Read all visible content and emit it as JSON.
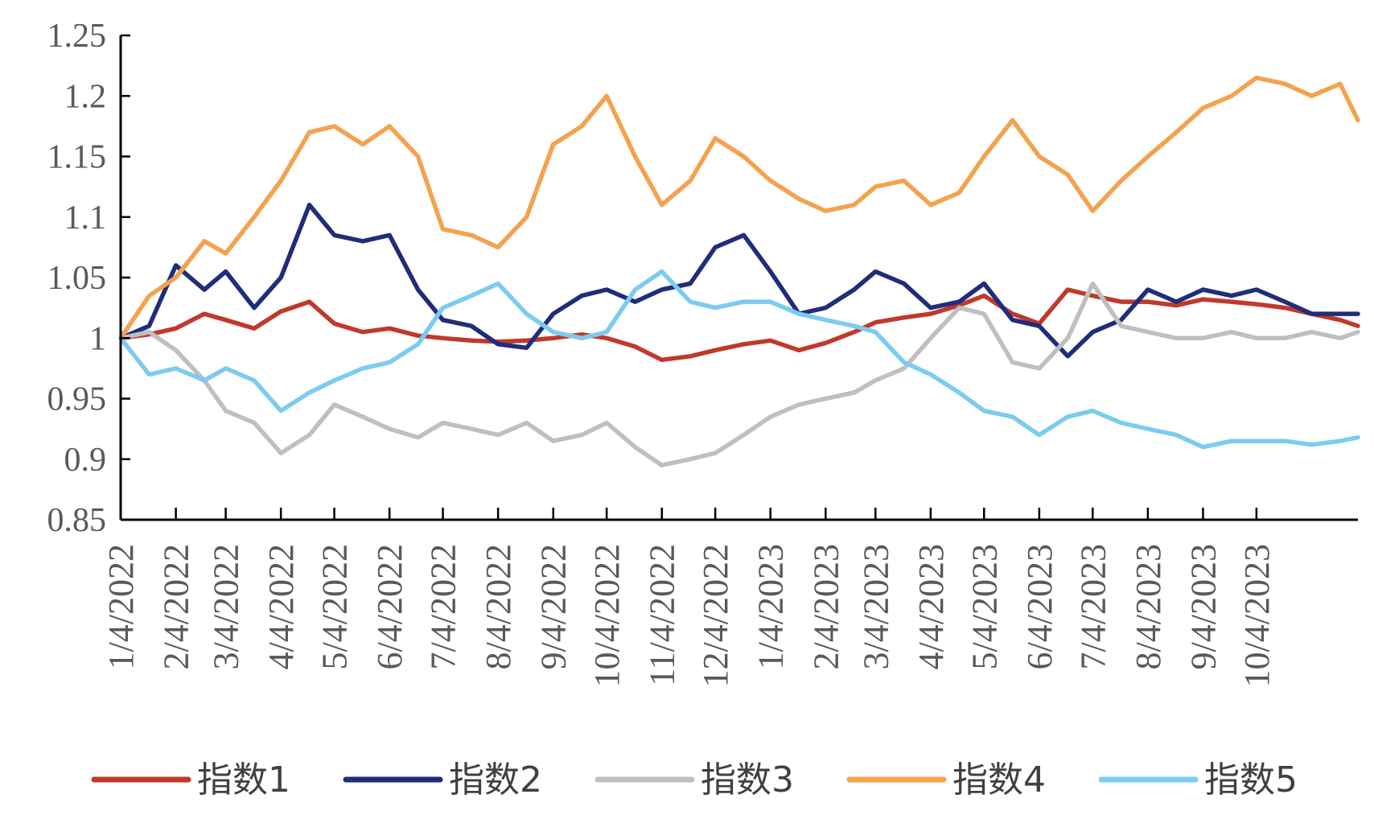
{
  "chart_data": {
    "type": "line",
    "title": "",
    "xlabel": "",
    "ylabel": "",
    "ylim": [
      0.85,
      1.25
    ],
    "yticks": [
      "0.85",
      "0.9",
      "0.95",
      "1",
      "1.05",
      "1.1",
      "1.15",
      "1.2",
      "1.25"
    ],
    "x_tick_labels": [
      "1/4/2022",
      "2/4/2022",
      "3/4/2022",
      "4/4/2022",
      "5/4/2022",
      "6/4/2022",
      "7/4/2022",
      "8/4/2022",
      "9/4/2022",
      "10/4/2022",
      "11/4/2022",
      "12/4/2022",
      "1/4/2023",
      "2/4/2023",
      "3/4/2023",
      "4/4/2023",
      "5/4/2023",
      "6/4/2023",
      "7/4/2023",
      "8/4/2023",
      "9/4/2023",
      "10/4/2023"
    ],
    "x_range": [
      "1/4/2022",
      "11/30/2023"
    ],
    "legend_position": "bottom",
    "grid": false,
    "series": [
      {
        "name": "指数1",
        "color": "#C0392B",
        "x": [
          "1/4/2022",
          "1/20/2022",
          "2/4/2022",
          "2/20/2022",
          "3/4/2022",
          "3/20/2022",
          "4/4/2022",
          "4/20/2022",
          "5/4/2022",
          "5/20/2022",
          "6/4/2022",
          "6/20/2022",
          "7/4/2022",
          "7/20/2022",
          "8/4/2022",
          "8/20/2022",
          "9/4/2022",
          "9/20/2022",
          "10/4/2022",
          "10/20/2022",
          "11/4/2022",
          "11/20/2022",
          "12/4/2022",
          "12/20/2022",
          "1/4/2023",
          "1/20/2023",
          "2/4/2023",
          "2/20/2023",
          "3/4/2023",
          "3/20/2023",
          "4/4/2023",
          "4/20/2023",
          "5/4/2023",
          "5/20/2023",
          "6/4/2023",
          "6/20/2023",
          "7/4/2023",
          "7/20/2023",
          "8/4/2023",
          "8/20/2023",
          "9/4/2023",
          "9/20/2023",
          "10/4/2023",
          "10/20/2023",
          "11/4/2023",
          "11/20/2023",
          "11/30/2023"
        ],
        "values": [
          1.0,
          1.003,
          1.008,
          1.02,
          1.015,
          1.008,
          1.022,
          1.03,
          1.012,
          1.005,
          1.008,
          1.002,
          1.0,
          0.998,
          0.997,
          0.998,
          1.0,
          1.003,
          1.0,
          0.993,
          0.982,
          0.985,
          0.99,
          0.995,
          0.998,
          0.99,
          0.996,
          1.005,
          1.013,
          1.017,
          1.02,
          1.027,
          1.035,
          1.02,
          1.012,
          1.04,
          1.035,
          1.03,
          1.03,
          1.027,
          1.032,
          1.03,
          1.028,
          1.025,
          1.02,
          1.015,
          1.01
        ]
      },
      {
        "name": "指数2",
        "color": "#1F2D7A",
        "x": [
          "1/4/2022",
          "1/20/2022",
          "2/4/2022",
          "2/20/2022",
          "3/4/2022",
          "3/20/2022",
          "4/4/2022",
          "4/20/2022",
          "5/4/2022",
          "5/20/2022",
          "6/4/2022",
          "6/20/2022",
          "7/4/2022",
          "7/20/2022",
          "8/4/2022",
          "8/20/2022",
          "9/4/2022",
          "9/20/2022",
          "10/4/2022",
          "10/20/2022",
          "11/4/2022",
          "11/20/2022",
          "12/4/2022",
          "12/20/2022",
          "1/4/2023",
          "1/20/2023",
          "2/4/2023",
          "2/20/2023",
          "3/4/2023",
          "3/20/2023",
          "4/4/2023",
          "4/20/2023",
          "5/4/2023",
          "5/20/2023",
          "6/4/2023",
          "6/20/2023",
          "7/4/2023",
          "7/20/2023",
          "8/4/2023",
          "8/20/2023",
          "9/4/2023",
          "9/20/2023",
          "10/4/2023",
          "10/20/2023",
          "11/4/2023",
          "11/20/2023",
          "11/30/2023"
        ],
        "values": [
          1.0,
          1.01,
          1.06,
          1.04,
          1.055,
          1.025,
          1.05,
          1.11,
          1.085,
          1.08,
          1.085,
          1.04,
          1.015,
          1.01,
          0.995,
          0.992,
          1.02,
          1.035,
          1.04,
          1.03,
          1.04,
          1.045,
          1.075,
          1.085,
          1.055,
          1.02,
          1.025,
          1.04,
          1.055,
          1.045,
          1.025,
          1.03,
          1.045,
          1.015,
          1.01,
          0.985,
          1.005,
          1.015,
          1.04,
          1.03,
          1.04,
          1.035,
          1.04,
          1.03,
          1.02,
          1.02,
          1.02
        ]
      },
      {
        "name": "指数3",
        "color": "#BFBFBF",
        "x": [
          "1/4/2022",
          "1/20/2022",
          "2/4/2022",
          "2/20/2022",
          "3/4/2022",
          "3/20/2022",
          "4/4/2022",
          "4/20/2022",
          "5/4/2022",
          "5/20/2022",
          "6/4/2022",
          "6/20/2022",
          "7/4/2022",
          "7/20/2022",
          "8/4/2022",
          "8/20/2022",
          "9/4/2022",
          "9/20/2022",
          "10/4/2022",
          "10/20/2022",
          "11/4/2022",
          "11/20/2022",
          "12/4/2022",
          "12/20/2022",
          "1/4/2023",
          "1/20/2023",
          "2/4/2023",
          "2/20/2023",
          "3/4/2023",
          "3/20/2023",
          "4/4/2023",
          "4/20/2023",
          "5/4/2023",
          "5/20/2023",
          "6/4/2023",
          "6/20/2023",
          "7/4/2023",
          "7/20/2023",
          "8/4/2023",
          "8/20/2023",
          "9/4/2023",
          "9/20/2023",
          "10/4/2023",
          "10/20/2023",
          "11/4/2023",
          "11/20/2023",
          "11/30/2023"
        ],
        "values": [
          1.0,
          1.005,
          0.99,
          0.965,
          0.94,
          0.93,
          0.905,
          0.92,
          0.945,
          0.935,
          0.925,
          0.918,
          0.93,
          0.925,
          0.92,
          0.93,
          0.915,
          0.92,
          0.93,
          0.91,
          0.895,
          0.9,
          0.905,
          0.92,
          0.935,
          0.945,
          0.95,
          0.955,
          0.965,
          0.975,
          1.0,
          1.025,
          1.02,
          0.98,
          0.975,
          1.0,
          1.045,
          1.01,
          1.005,
          1.0,
          1.0,
          1.005,
          1.0,
          1.0,
          1.005,
          1.0,
          1.005
        ]
      },
      {
        "name": "指数4",
        "color": "#F4A24E",
        "x": [
          "1/4/2022",
          "1/20/2022",
          "2/4/2022",
          "2/20/2022",
          "3/4/2022",
          "3/20/2022",
          "4/4/2022",
          "4/20/2022",
          "5/4/2022",
          "5/20/2022",
          "6/4/2022",
          "6/20/2022",
          "7/4/2022",
          "7/20/2022",
          "8/4/2022",
          "8/20/2022",
          "9/4/2022",
          "9/20/2022",
          "10/4/2022",
          "10/20/2022",
          "11/4/2022",
          "11/20/2022",
          "12/4/2022",
          "12/20/2022",
          "1/4/2023",
          "1/20/2023",
          "2/4/2023",
          "2/20/2023",
          "3/4/2023",
          "3/20/2023",
          "4/4/2023",
          "4/20/2023",
          "5/4/2023",
          "5/20/2023",
          "6/4/2023",
          "6/20/2023",
          "7/4/2023",
          "7/20/2023",
          "8/4/2023",
          "8/20/2023",
          "9/4/2023",
          "9/20/2023",
          "10/4/2023",
          "10/20/2023",
          "11/4/2023",
          "11/20/2023",
          "11/30/2023"
        ],
        "values": [
          1.0,
          1.035,
          1.05,
          1.08,
          1.07,
          1.1,
          1.13,
          1.17,
          1.175,
          1.16,
          1.175,
          1.15,
          1.09,
          1.085,
          1.075,
          1.1,
          1.16,
          1.175,
          1.2,
          1.15,
          1.11,
          1.13,
          1.165,
          1.15,
          1.13,
          1.115,
          1.105,
          1.11,
          1.125,
          1.13,
          1.11,
          1.12,
          1.15,
          1.18,
          1.15,
          1.135,
          1.105,
          1.13,
          1.15,
          1.17,
          1.19,
          1.2,
          1.215,
          1.21,
          1.2,
          1.21,
          1.18
        ]
      },
      {
        "name": "指数5",
        "color": "#7CCBF0",
        "x": [
          "1/4/2022",
          "1/20/2022",
          "2/4/2022",
          "2/20/2022",
          "3/4/2022",
          "3/20/2022",
          "4/4/2022",
          "4/20/2022",
          "5/4/2022",
          "5/20/2022",
          "6/4/2022",
          "6/20/2022",
          "7/4/2022",
          "7/20/2022",
          "8/4/2022",
          "8/20/2022",
          "9/4/2022",
          "9/20/2022",
          "10/4/2022",
          "10/20/2022",
          "11/4/2022",
          "11/20/2022",
          "12/4/2022",
          "12/20/2022",
          "1/4/2023",
          "1/20/2023",
          "2/4/2023",
          "2/20/2023",
          "3/4/2023",
          "3/20/2023",
          "4/4/2023",
          "4/20/2023",
          "5/4/2023",
          "5/20/2023",
          "6/4/2023",
          "6/20/2023",
          "7/4/2023",
          "7/20/2023",
          "8/4/2023",
          "8/20/2023",
          "9/4/2023",
          "9/20/2023",
          "10/4/2023",
          "10/20/2023",
          "11/4/2023",
          "11/20/2023",
          "11/30/2023"
        ],
        "values": [
          1.0,
          0.97,
          0.975,
          0.965,
          0.975,
          0.965,
          0.94,
          0.955,
          0.965,
          0.975,
          0.98,
          0.995,
          1.025,
          1.035,
          1.045,
          1.02,
          1.005,
          1.0,
          1.005,
          1.04,
          1.055,
          1.03,
          1.025,
          1.03,
          1.03,
          1.02,
          1.015,
          1.01,
          1.005,
          0.98,
          0.97,
          0.955,
          0.94,
          0.935,
          0.92,
          0.935,
          0.94,
          0.93,
          0.925,
          0.92,
          0.91,
          0.915,
          0.915,
          0.915,
          0.912,
          0.915,
          0.918
        ]
      }
    ]
  }
}
